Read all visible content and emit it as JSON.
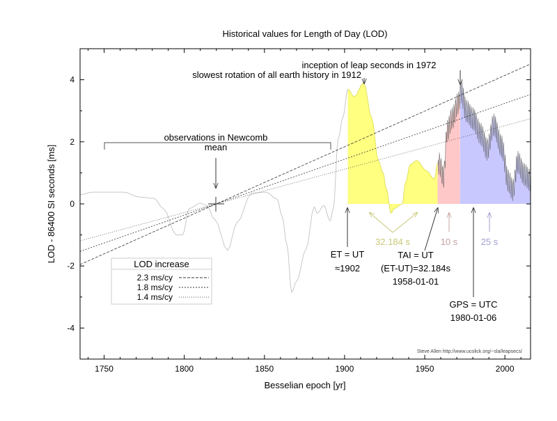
{
  "chart_data": {
    "type": "area",
    "title": "Historical values for Length of Day (LOD)",
    "xlabel": "Besselian epoch [yr]",
    "ylabel": "LOD - 86400 SI seconds [ms]",
    "xlim": [
      1735,
      2016
    ],
    "ylim": [
      -5,
      5
    ],
    "xticks": [
      1750,
      1800,
      1850,
      1900,
      1950,
      2000
    ],
    "yticks": [
      -4,
      -2,
      0,
      2,
      4
    ],
    "grid": false,
    "colors": {
      "curve": "#c8c8c8",
      "et_ut": "#ffff80",
      "tai": "#ffc8c8",
      "gps": "#c8c8ff",
      "annot_yellow": "#c8c878",
      "annot_pink": "#c8a0a0",
      "annot_blue": "#a0a0d0"
    },
    "series": [
      {
        "name": "LOD",
        "x": [
          1735,
          1743,
          1762,
          1772,
          1781,
          1787,
          1795,
          1799,
          1803,
          1810,
          1814,
          1819,
          1827,
          1833,
          1842,
          1851,
          1858,
          1861,
          1864,
          1867,
          1870,
          1876,
          1881,
          1883,
          1887,
          1891,
          1893,
          1896,
          1899,
          1902,
          1906,
          1912,
          1917,
          1921,
          1924,
          1926,
          1929,
          1931,
          1936,
          1938,
          1941,
          1945,
          1951,
          1956,
          1958,
          1959,
          1961.7,
          1964,
          1967,
          1971,
          1972.6,
          1976,
          1980,
          1985,
          1989,
          1993,
          1998,
          2002,
          2005,
          2008,
          2012,
          2016
        ],
        "y": [
          0.3,
          0.38,
          0.38,
          0.22,
          0.18,
          -0.15,
          -1.0,
          -1.0,
          -0.15,
          0.02,
          -0.05,
          -0.5,
          -1.5,
          -0.6,
          0.35,
          0.38,
          0.15,
          -0.4,
          -1.3,
          -2.85,
          -2.5,
          -1.45,
          -0.1,
          -0.3,
          -0.05,
          -0.55,
          -0.15,
          2.1,
          2.8,
          3.7,
          3.45,
          3.9,
          2.75,
          1.4,
          1.0,
          0.5,
          -0.3,
          -0.15,
          0.0,
          0.68,
          1.27,
          1.4,
          1.07,
          0.8,
          1.3,
          1.35,
          0.9,
          2.4,
          2.8,
          3.3,
          3.7,
          3.05,
          2.8,
          2.3,
          1.8,
          2.6,
          1.9,
          0.8,
          0.5,
          1.4,
          1.0,
          0.8
        ]
      }
    ],
    "trend_lines": {
      "pivot_year": 1820,
      "rates": [
        2.3,
        1.8,
        1.4
      ],
      "legend_title": "LOD increase",
      "labels": [
        "2.3 ms/cy",
        "1.8 ms/cy",
        "1.4 ms/cy"
      ]
    },
    "regions": [
      {
        "name": "ET=UT",
        "from": 1902,
        "to": 1958
      },
      {
        "name": "TAI",
        "from": 1958,
        "to": 1972
      },
      {
        "name": "GPS",
        "from": 1972,
        "to": 2016
      }
    ],
    "annotations": {
      "leap": "inception of leap seconds in 1972",
      "slowest": "slowest rotation of all earth history in 1912",
      "newcomb1": "observations in Newcomb",
      "newcomb2": "mean",
      "et1": "ET = UT",
      "et2": "≈1902",
      "s32": "32.184 s",
      "tai1": "TAI = UT",
      "tai2": "(ET-UT)=32.184s",
      "tai3": "1958-01-01",
      "s10": "10 s",
      "gps1": "GPS = UTC",
      "gps2": "1980-01-06",
      "s25": "25 s"
    },
    "credit": "Steve Allen  http://www.ucolick.org/~sla/leapsecs/"
  }
}
